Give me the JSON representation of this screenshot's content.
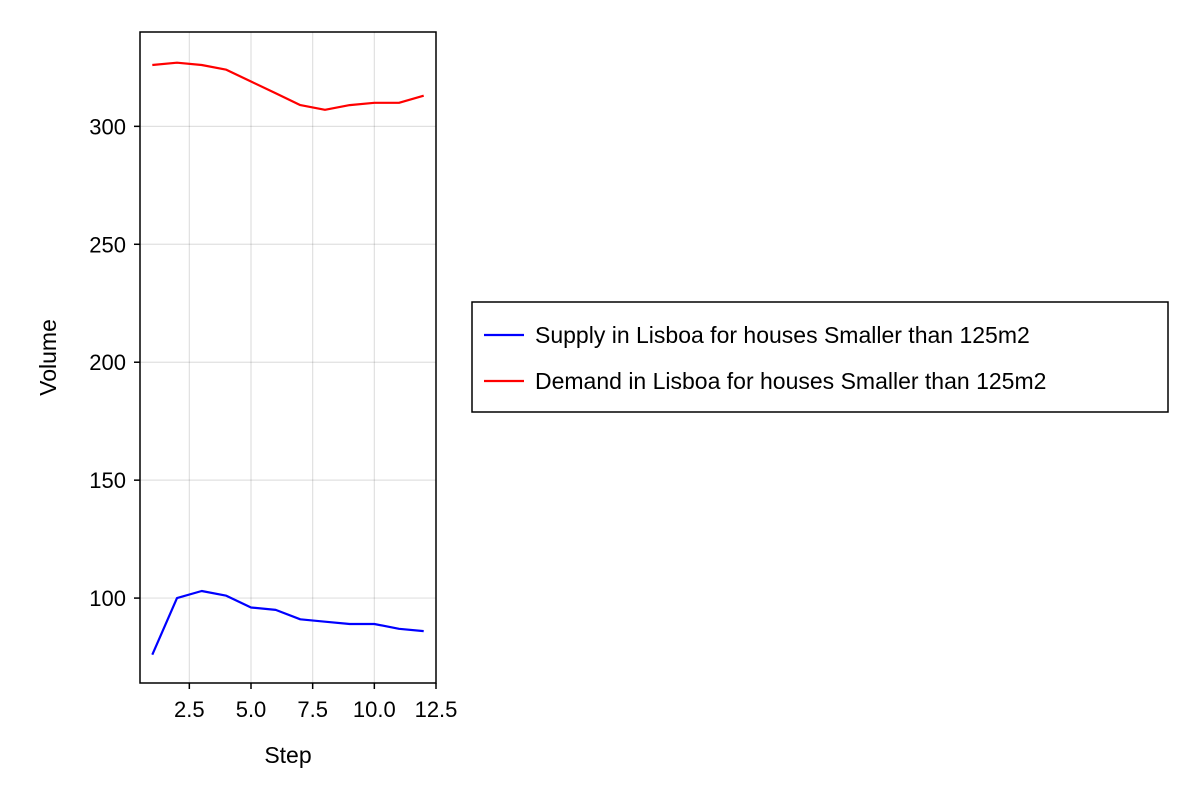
{
  "chart_data": {
    "type": "line",
    "title": "",
    "xlabel": "Step",
    "ylabel": "Volume",
    "xlim": [
      0.5,
      12.5
    ],
    "ylim": [
      64,
      340
    ],
    "xticks": [
      2.5,
      5.0,
      7.5,
      10.0,
      12.5
    ],
    "xtick_labels": [
      "2.5",
      "5.0",
      "7.5",
      "10.0",
      "12.5"
    ],
    "yticks": [
      100,
      150,
      200,
      250,
      300
    ],
    "ytick_labels": [
      "100",
      "150",
      "200",
      "250",
      "300"
    ],
    "grid": true,
    "legend_position": "right",
    "x": [
      1,
      2,
      3,
      4,
      5,
      6,
      7,
      8,
      9,
      10,
      11,
      12
    ],
    "series": [
      {
        "name": "Supply in Lisboa for houses Smaller than 125m2",
        "color": "#0000ff",
        "values": [
          76,
          100,
          103,
          101,
          96,
          95,
          91,
          90,
          89,
          89,
          87,
          86
        ]
      },
      {
        "name": "Demand in Lisboa for houses Smaller than 125m2",
        "color": "#ff0000",
        "values": [
          326,
          327,
          326,
          324,
          319,
          314,
          309,
          307,
          309,
          310,
          310,
          313
        ]
      }
    ]
  }
}
